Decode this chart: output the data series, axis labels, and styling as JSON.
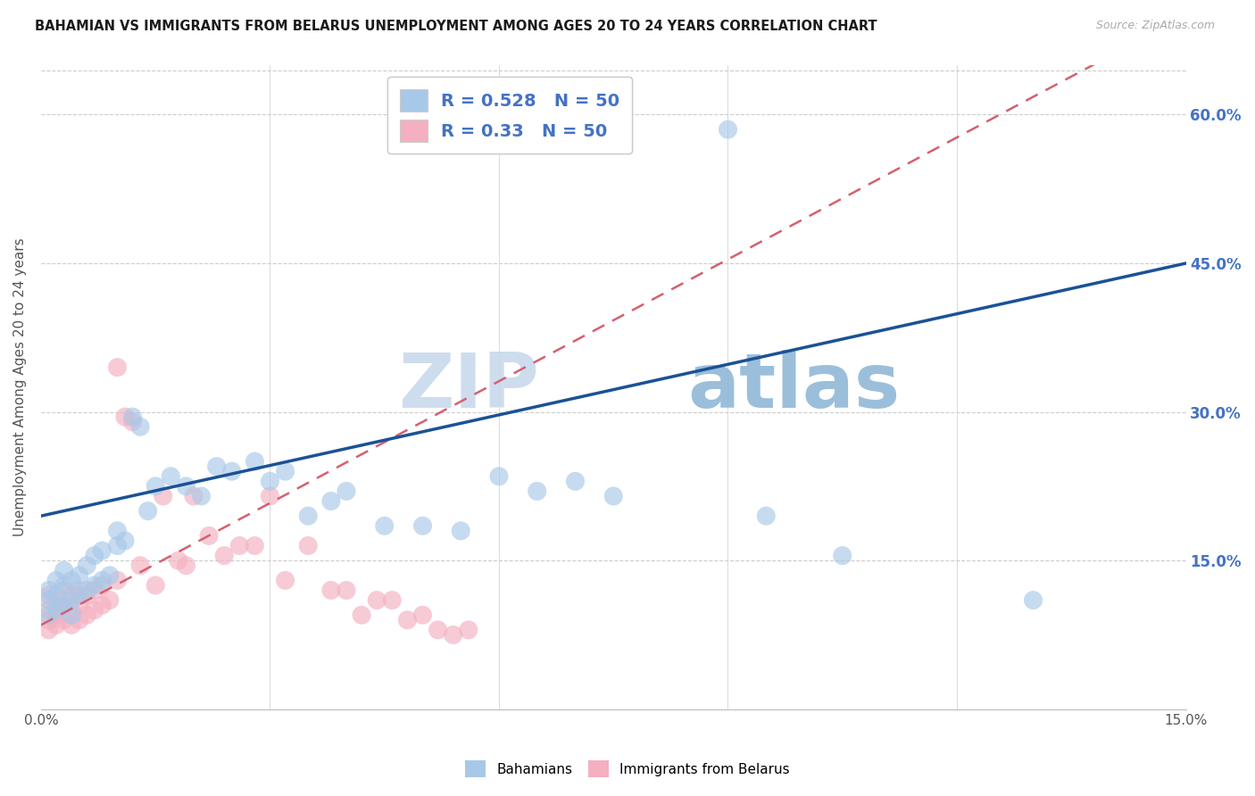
{
  "title": "BAHAMIAN VS IMMIGRANTS FROM BELARUS UNEMPLOYMENT AMONG AGES 20 TO 24 YEARS CORRELATION CHART",
  "source": "Source: ZipAtlas.com",
  "ylabel": "Unemployment Among Ages 20 to 24 years",
  "xlim": [
    0,
    0.15
  ],
  "ylim": [
    0,
    0.65
  ],
  "legend_labels": [
    "Bahamians",
    "Immigrants from Belarus"
  ],
  "R_blue": 0.528,
  "R_pink": 0.33,
  "N_blue": 50,
  "N_pink": 50,
  "blue_color": "#a8c8e8",
  "pink_color": "#f4b0c0",
  "blue_line_color": "#1a5296",
  "pink_line_color": "#d46070",
  "watermark_zip": "ZIP",
  "watermark_atlas": "atlas",
  "background_color": "#ffffff",
  "grid_color": "#cccccc",
  "title_color": "#1a1a1a",
  "label_color": "#555555",
  "axis_num_color": "#4472c4",
  "right_ytick_labels": [
    "",
    "15.0%",
    "30.0%",
    "45.0%",
    "60.0%"
  ],
  "blue_intercept": 0.195,
  "blue_slope": 1.7,
  "pink_intercept": 0.085,
  "pink_slope": 4.1,
  "blue_x": [
    0.001,
    0.001,
    0.001,
    0.002,
    0.002,
    0.002,
    0.003,
    0.003,
    0.003,
    0.004,
    0.004,
    0.004,
    0.005,
    0.005,
    0.006,
    0.006,
    0.007,
    0.007,
    0.008,
    0.008,
    0.009,
    0.01,
    0.01,
    0.011,
    0.012,
    0.013,
    0.014,
    0.015,
    0.017,
    0.019,
    0.021,
    0.023,
    0.025,
    0.028,
    0.03,
    0.032,
    0.035,
    0.038,
    0.04,
    0.045,
    0.05,
    0.055,
    0.06,
    0.065,
    0.07,
    0.075,
    0.09,
    0.095,
    0.105,
    0.13
  ],
  "blue_y": [
    0.095,
    0.11,
    0.12,
    0.1,
    0.115,
    0.13,
    0.105,
    0.125,
    0.14,
    0.11,
    0.13,
    0.095,
    0.115,
    0.135,
    0.12,
    0.145,
    0.125,
    0.155,
    0.13,
    0.16,
    0.135,
    0.165,
    0.18,
    0.17,
    0.295,
    0.285,
    0.2,
    0.225,
    0.235,
    0.225,
    0.215,
    0.245,
    0.24,
    0.25,
    0.23,
    0.24,
    0.195,
    0.21,
    0.22,
    0.185,
    0.185,
    0.18,
    0.235,
    0.22,
    0.23,
    0.215,
    0.585,
    0.195,
    0.155,
    0.11
  ],
  "pink_x": [
    0.001,
    0.001,
    0.001,
    0.001,
    0.002,
    0.002,
    0.002,
    0.003,
    0.003,
    0.003,
    0.004,
    0.004,
    0.004,
    0.005,
    0.005,
    0.005,
    0.006,
    0.006,
    0.007,
    0.007,
    0.008,
    0.008,
    0.009,
    0.01,
    0.01,
    0.011,
    0.012,
    0.013,
    0.015,
    0.016,
    0.018,
    0.019,
    0.02,
    0.022,
    0.024,
    0.026,
    0.028,
    0.03,
    0.032,
    0.035,
    0.038,
    0.04,
    0.042,
    0.044,
    0.046,
    0.048,
    0.05,
    0.052,
    0.054,
    0.056
  ],
  "pink_y": [
    0.08,
    0.09,
    0.1,
    0.115,
    0.085,
    0.095,
    0.11,
    0.09,
    0.105,
    0.12,
    0.085,
    0.1,
    0.115,
    0.09,
    0.105,
    0.12,
    0.095,
    0.115,
    0.1,
    0.12,
    0.105,
    0.125,
    0.11,
    0.13,
    0.345,
    0.295,
    0.29,
    0.145,
    0.125,
    0.215,
    0.15,
    0.145,
    0.215,
    0.175,
    0.155,
    0.165,
    0.165,
    0.215,
    0.13,
    0.165,
    0.12,
    0.12,
    0.095,
    0.11,
    0.11,
    0.09,
    0.095,
    0.08,
    0.075,
    0.08
  ]
}
